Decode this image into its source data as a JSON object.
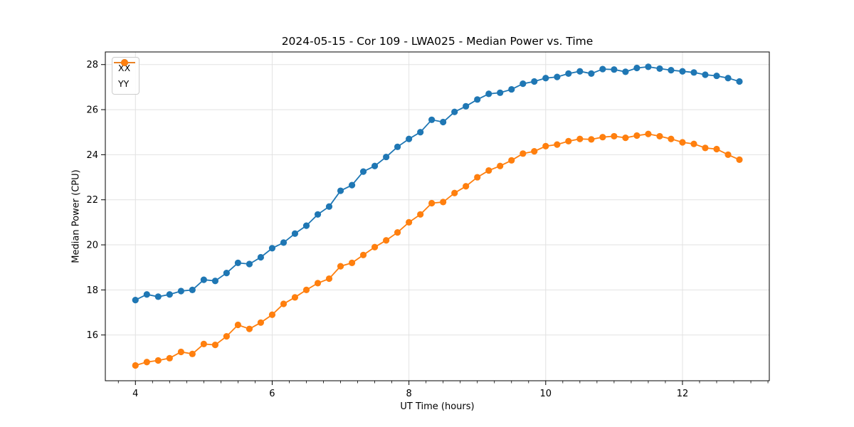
{
  "chart_data": {
    "type": "line",
    "title": "2024-05-15 - Cor 109 - LWA025 - Median Power vs. Time",
    "xlabel": "UT Time (hours)",
    "ylabel": "Median Power (CPU)",
    "xlim": [
      3.56,
      13.27
    ],
    "ylim": [
      13.97,
      28.56
    ],
    "xticks": [
      4,
      6,
      8,
      10,
      12
    ],
    "yticks": [
      16,
      18,
      20,
      22,
      24,
      26,
      28
    ],
    "minor_xtick_step": 0.25,
    "grid": true,
    "grid_color": "#e2e2e2",
    "legend": {
      "position": "upper left"
    },
    "x": [
      4.0,
      4.167,
      4.333,
      4.5,
      4.667,
      4.833,
      5.0,
      5.167,
      5.333,
      5.5,
      5.667,
      5.833,
      6.0,
      6.167,
      6.333,
      6.5,
      6.667,
      6.833,
      7.0,
      7.167,
      7.333,
      7.5,
      7.667,
      7.833,
      8.0,
      8.167,
      8.333,
      8.5,
      8.667,
      8.833,
      9.0,
      9.167,
      9.333,
      9.5,
      9.667,
      9.833,
      10.0,
      10.167,
      10.333,
      10.5,
      10.667,
      10.833,
      11.0,
      11.167,
      11.333,
      11.5,
      11.667,
      11.833,
      12.0,
      12.167,
      12.333,
      12.5,
      12.667,
      12.833
    ],
    "series": [
      {
        "name": "XX",
        "color": "#1f77b4",
        "values": [
          17.55,
          17.8,
          17.7,
          17.8,
          17.95,
          18.0,
          18.45,
          18.4,
          18.75,
          19.2,
          19.15,
          19.45,
          19.85,
          20.1,
          20.5,
          20.85,
          21.35,
          21.7,
          22.4,
          22.65,
          23.25,
          23.5,
          23.9,
          24.35,
          24.7,
          25.0,
          25.55,
          25.45,
          25.9,
          26.15,
          26.45,
          26.7,
          26.75,
          26.9,
          27.15,
          27.25,
          27.4,
          27.45,
          27.6,
          27.7,
          27.6,
          27.8,
          27.78,
          27.68,
          27.85,
          27.9,
          27.82,
          27.75,
          27.7,
          27.65,
          27.55,
          27.5,
          27.4,
          27.25
        ]
      },
      {
        "name": "YY",
        "color": "#ff7f0e",
        "values": [
          14.65,
          14.8,
          14.87,
          14.97,
          15.25,
          15.16,
          15.6,
          15.56,
          15.94,
          16.45,
          16.27,
          16.55,
          16.9,
          17.38,
          17.67,
          18.0,
          18.3,
          18.5,
          19.05,
          19.2,
          19.55,
          19.9,
          20.2,
          20.55,
          21.0,
          21.35,
          21.85,
          21.9,
          22.3,
          22.6,
          23.0,
          23.3,
          23.5,
          23.75,
          24.05,
          24.15,
          24.38,
          24.45,
          24.6,
          24.7,
          24.68,
          24.78,
          24.82,
          24.75,
          24.85,
          24.92,
          24.82,
          24.7,
          24.55,
          24.48,
          24.3,
          24.25,
          24.0,
          23.78
        ]
      }
    ]
  }
}
